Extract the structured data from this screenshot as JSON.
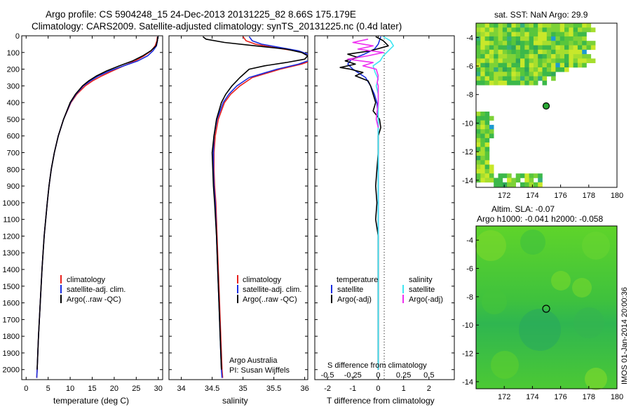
{
  "header": {
    "line1": "Argo profile: CS 5904248_15 24-Dec-2013 20131225_82 8.66S 175.179E",
    "line2": "Climatology: CARS2009. Satellite-adjusted climatology: synTS_20131225.nc (0.4d later)"
  },
  "colors": {
    "climatology": "#e8211d",
    "satellite": "#1a2ee0",
    "argo": "#000000",
    "sal_satellite": "#3fe6f2",
    "sal_argo": "#ee2ff0"
  },
  "chart_data": [
    {
      "type": "line",
      "id": "temperature",
      "xlabel": "temperature (deg C)",
      "ylabel": "",
      "xlim": [
        -1,
        31
      ],
      "ylim": [
        2060,
        0
      ],
      "xticks": [
        "0",
        "5",
        "10",
        "15",
        "20",
        "25",
        "30"
      ],
      "yticks": [
        "0",
        "100",
        "200",
        "300",
        "400",
        "500",
        "600",
        "700",
        "800",
        "900",
        "1000",
        "1100",
        "1200",
        "1300",
        "1400",
        "1500",
        "1600",
        "1700",
        "1800",
        "1900",
        "2000"
      ],
      "legend": [
        "climatology",
        "satellite-adj. clim.",
        "Argo(..raw -QC)"
      ],
      "series": [
        {
          "name": "climatology",
          "depth": [
            5,
            30,
            60,
            90,
            120,
            150,
            180,
            210,
            240,
            270,
            300,
            350,
            400,
            500,
            600,
            700,
            800,
            900,
            1000,
            1200,
            1400,
            1600,
            1800,
            2000,
            2050
          ],
          "values": [
            29.8,
            29.7,
            29.3,
            28.4,
            26.8,
            24.8,
            22.2,
            19.6,
            17.2,
            15.1,
            13.4,
            11.5,
            10.2,
            8.5,
            7.3,
            6.4,
            5.7,
            5.2,
            4.8,
            4.1,
            3.6,
            3.2,
            2.8,
            2.5,
            2.4
          ]
        },
        {
          "name": "satellite-adj. clim.",
          "depth": [
            5,
            30,
            60,
            90,
            120,
            150,
            180,
            210,
            240,
            270,
            300,
            350,
            400,
            500,
            600,
            700,
            800,
            900,
            1000,
            1200,
            1400,
            1600,
            1800,
            2000,
            2050
          ],
          "values": [
            29.9,
            29.8,
            29.6,
            28.8,
            27.6,
            25.4,
            22.2,
            19.0,
            16.5,
            14.6,
            13.0,
            11.3,
            10.1,
            8.5,
            7.3,
            6.4,
            5.7,
            5.2,
            4.8,
            4.1,
            3.6,
            3.2,
            2.8,
            2.5,
            2.4
          ]
        },
        {
          "name": "Argo(..raw -QC)",
          "depth": [
            5,
            30,
            60,
            90,
            120,
            150,
            180,
            210,
            240,
            270,
            300,
            350,
            400,
            500,
            600,
            700,
            800,
            900,
            1000,
            1200,
            1400,
            1600,
            1800,
            2000
          ],
          "values": [
            29.9,
            29.8,
            29.5,
            28.3,
            26.5,
            24.2,
            21.2,
            18.3,
            16.0,
            14.2,
            12.8,
            11.2,
            10.0,
            8.5,
            7.3,
            6.4,
            5.7,
            5.2,
            4.8,
            4.1,
            3.6,
            3.2,
            2.8,
            2.5
          ]
        }
      ]
    },
    {
      "type": "line",
      "id": "salinity",
      "xlabel": "salinity",
      "xlim": [
        33.8,
        36.05
      ],
      "ylim": [
        2060,
        0
      ],
      "xticks": [
        "34",
        "34.5",
        "35",
        "35.5",
        "36"
      ],
      "legend": [
        "climatology",
        "satellite-adj. clim.",
        "Argo(..raw -QC)"
      ],
      "annotation": [
        "Argo Australia",
        "PI: Susan Wijffels"
      ],
      "series": [
        {
          "name": "climatology",
          "depth": [
            5,
            30,
            50,
            70,
            90,
            110,
            130,
            150,
            170,
            200,
            250,
            300,
            350,
            400,
            500,
            600,
            700,
            800,
            900,
            1000,
            1200,
            1400,
            1600,
            1800,
            2000,
            2050
          ],
          "values": [
            35.0,
            35.05,
            35.2,
            35.5,
            35.85,
            36.05,
            36.1,
            36.1,
            35.95,
            35.6,
            35.15,
            34.95,
            34.8,
            34.7,
            34.6,
            34.55,
            34.53,
            34.53,
            34.54,
            34.56,
            34.58,
            34.6,
            34.62,
            34.64,
            34.66,
            34.67
          ]
        },
        {
          "name": "satellite-adj. clim.",
          "depth": [
            5,
            30,
            50,
            70,
            90,
            110,
            130,
            150,
            170,
            200,
            250,
            300,
            350,
            400,
            500,
            600,
            700,
            800,
            900,
            1000,
            1200,
            1400,
            1600,
            1800,
            2000,
            2050
          ],
          "values": [
            35.1,
            35.15,
            35.3,
            35.6,
            35.9,
            36.05,
            36.1,
            36.05,
            35.9,
            35.55,
            35.1,
            34.9,
            34.77,
            34.68,
            34.58,
            34.53,
            34.52,
            34.52,
            34.53,
            34.55,
            34.57,
            34.59,
            34.61,
            34.63,
            34.65,
            34.66
          ]
        },
        {
          "name": "Argo(..raw -QC)",
          "depth": [
            5,
            20,
            40,
            60,
            80,
            100,
            120,
            140,
            160,
            180,
            200,
            250,
            300,
            350,
            400,
            500,
            600,
            700,
            800,
            900,
            1000,
            1200,
            1400,
            1600,
            1800,
            2000
          ],
          "values": [
            34.35,
            34.4,
            34.7,
            35.2,
            35.7,
            35.95,
            36.05,
            36.0,
            35.7,
            35.35,
            35.1,
            34.95,
            34.82,
            34.72,
            34.65,
            34.57,
            34.53,
            34.5,
            34.51,
            34.52,
            34.54,
            34.57,
            34.59,
            34.61,
            34.63,
            34.65
          ]
        }
      ]
    },
    {
      "type": "line",
      "id": "difference",
      "xlabel": "T difference from climatology",
      "xlabel_top": "S difference from climatology",
      "xlim": [
        -2.5,
        3
      ],
      "ylim": [
        2060,
        0
      ],
      "xticks": [
        "-2",
        "-1",
        "0",
        "1",
        "2"
      ],
      "xticks_top": [
        "-0.5",
        "-0.25",
        "0",
        "0.25",
        "0.5"
      ],
      "legend_titles": [
        "temperature",
        "salinity"
      ],
      "legend": [
        "satellite",
        "Argo(-adj)",
        "satellite",
        "Argo(-adj)"
      ],
      "series": [
        {
          "name": "temperature satellite",
          "depth": [
            5,
            50,
            80,
            110,
            140,
            170,
            200,
            250,
            300,
            350,
            400,
            500,
            600,
            800,
            1000,
            1500,
            2000
          ],
          "values": [
            0.1,
            0.0,
            -0.15,
            -0.55,
            -1.05,
            -1.2,
            -1.0,
            -0.5,
            -0.3,
            -0.15,
            -0.05,
            0.0,
            0.0,
            0.0,
            0.0,
            0.0,
            0.0
          ]
        },
        {
          "name": "temperature Argo(-adj)",
          "depth": [
            5,
            30,
            60,
            90,
            110,
            130,
            150,
            170,
            190,
            200,
            220,
            240,
            270,
            300,
            350,
            400,
            450,
            500,
            550,
            600,
            700,
            800,
            900,
            1000,
            1100,
            1200,
            1500,
            1800,
            2000
          ],
          "values": [
            -0.1,
            0.2,
            0.4,
            -0.3,
            -1.2,
            -0.8,
            -1.3,
            -0.9,
            -1.5,
            -1.1,
            -0.6,
            -0.9,
            -0.4,
            -0.3,
            -0.2,
            -0.1,
            -0.2,
            0.05,
            0.1,
            0.0,
            0.0,
            -0.05,
            -0.1,
            -0.05,
            -0.1,
            0.0,
            0.0,
            0.0,
            0.0
          ]
        },
        {
          "name": "salinity satellite",
          "depth": [
            5,
            30,
            60,
            90,
            120,
            150,
            180,
            220,
            260,
            300,
            350,
            400,
            500,
            600,
            800,
            1000,
            1500,
            2000
          ],
          "values": [
            0.05,
            0.12,
            0.15,
            0.1,
            0.05,
            0.02,
            -0.05,
            -0.03,
            0.0,
            -0.02,
            0.0,
            0.0,
            0.0,
            0.0,
            0.0,
            0.0,
            0.0,
            0.0
          ]
        },
        {
          "name": "salinity Argo(-adj)",
          "depth": [
            20,
            40,
            60,
            80,
            100,
            120,
            140,
            160,
            180,
            200,
            240,
            280,
            300,
            350,
            400,
            450,
            500,
            550
          ],
          "values": [
            -0.1,
            -0.25,
            -0.05,
            -0.2,
            0.05,
            -0.1,
            -0.3,
            -0.05,
            -0.15,
            -0.02,
            0.0,
            -0.01,
            0.0,
            0.0,
            0.0,
            -0.01,
            -0.02,
            0.0
          ]
        }
      ]
    },
    {
      "type": "heatmap",
      "id": "sst-map",
      "title": "sat. SST: NaN Argo: 29.9",
      "xlim": [
        170,
        180
      ],
      "ylim": [
        -14.5,
        -3
      ],
      "xticks": [
        "172",
        "174",
        "176",
        "178",
        "180"
      ],
      "yticks": [
        "-4",
        "-6",
        "-8",
        "-10",
        "-12",
        "-14"
      ],
      "marker": {
        "lon": 175.179,
        "lat": -8.66
      }
    },
    {
      "type": "heatmap",
      "id": "sla-map",
      "title": "Altim. SLA: -0.07",
      "subtitle": "Argo h1000: -0.041 h2000: -0.058",
      "xlim": [
        170,
        180
      ],
      "ylim": [
        -14.5,
        -3
      ],
      "xticks": [
        "172",
        "174",
        "176",
        "178",
        "180"
      ],
      "yticks": [
        "-4",
        "-6",
        "-8",
        "-10",
        "-12",
        "-14"
      ],
      "marker": {
        "lon": 175.179,
        "lat": -8.66
      }
    }
  ],
  "footer": {
    "imos": "IMOS 01-Jan-2014 20:00:36"
  }
}
